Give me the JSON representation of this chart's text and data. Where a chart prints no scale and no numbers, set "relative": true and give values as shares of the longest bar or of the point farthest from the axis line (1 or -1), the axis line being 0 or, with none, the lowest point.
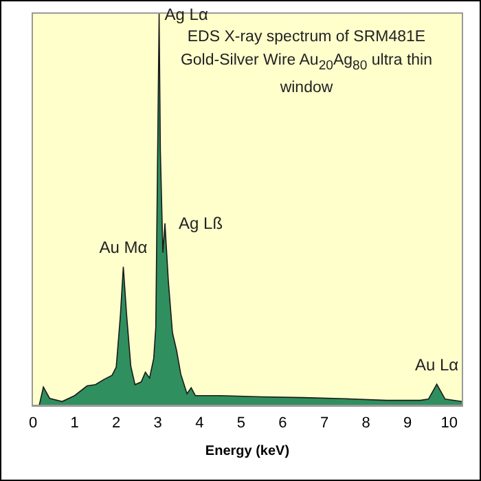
{
  "chart_data": {
    "type": "area",
    "title": "EDS X-ray spectrum of SRM481E Gold-Silver Wire Au$_{20}$Ag$_{80}$ ultra thin window",
    "xlabel": "Energy (keV)",
    "relative": true,
    "xlim": [
      0,
      10.3
    ],
    "xticks": [
      0,
      1,
      2,
      3,
      4,
      5,
      6,
      7,
      8,
      9,
      10
    ],
    "x": [
      0.15,
      0.25,
      0.4,
      0.7,
      1.0,
      1.3,
      1.5,
      1.7,
      1.9,
      2.0,
      2.1,
      2.17,
      2.25,
      2.35,
      2.45,
      2.6,
      2.7,
      2.8,
      2.9,
      2.95,
      3.0,
      3.03,
      3.06,
      3.09,
      3.12,
      3.17,
      3.25,
      3.35,
      3.45,
      3.55,
      3.7,
      3.8,
      3.9,
      4.5,
      5.5,
      6.5,
      7.5,
      8.5,
      9.3,
      9.5,
      9.7,
      9.9,
      10.3
    ],
    "series": [
      {
        "color": "#2f8f5f",
        "values": [
          0,
          0.047,
          0.018,
          0.01,
          0.025,
          0.05,
          0.053,
          0.066,
          0.077,
          0.098,
          0.23,
          0.354,
          0.23,
          0.1,
          0.053,
          0.06,
          0.085,
          0.07,
          0.12,
          0.2,
          0.7,
          1.0,
          0.65,
          0.52,
          0.39,
          0.465,
          0.32,
          0.186,
          0.14,
          0.08,
          0.03,
          0.045,
          0.025,
          0.025,
          0.022,
          0.02,
          0.017,
          0.013,
          0.013,
          0.016,
          0.054,
          0.016,
          0.01
        ]
      }
    ],
    "annotations": [
      {
        "text": "Au Mα",
        "x": 2.17,
        "y": 0.354
      },
      {
        "text": "Ag Lα",
        "x": 3.03,
        "y": 1.0
      },
      {
        "text": "Ag Lß",
        "x": 3.17,
        "y": 0.465
      },
      {
        "text": "Au Lα",
        "x": 9.7,
        "y": 0.054
      }
    ],
    "grid": false,
    "legend": false
  }
}
